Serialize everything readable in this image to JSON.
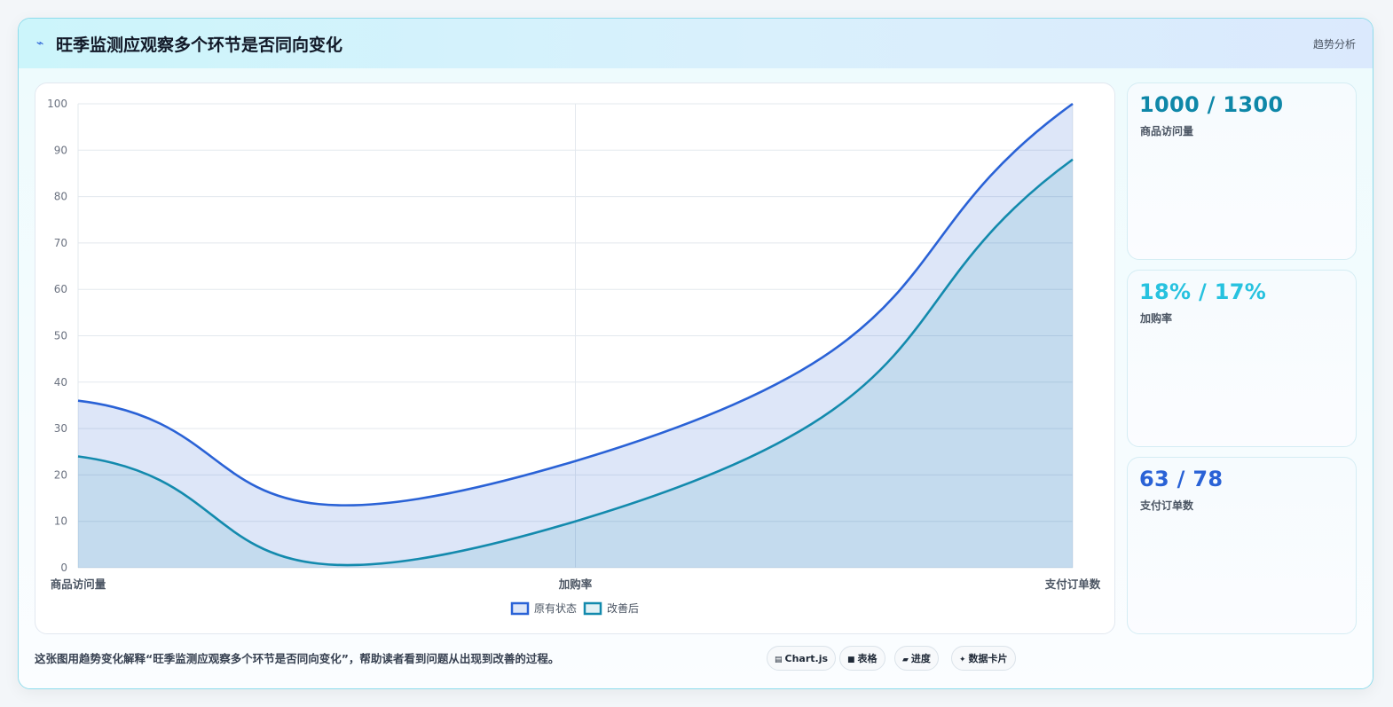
{
  "header": {
    "icon": "lightning-icon",
    "title": "旺季监测应观察多个环节是否同向变化",
    "right_label": "趋势分析"
  },
  "chart_data": {
    "type": "area",
    "categories": [
      "商品访问量",
      "加购率",
      "支付订单数"
    ],
    "series": [
      {
        "name": "原有状态",
        "values": [
          36,
          23,
          100
        ],
        "color": "#2a62d6"
      },
      {
        "name": "改善后",
        "values": [
          24,
          10,
          88
        ],
        "color": "#138aad"
      }
    ],
    "ylim": [
      0,
      100
    ],
    "yticks": [
      0,
      10,
      20,
      30,
      40,
      50,
      60,
      70,
      80,
      90,
      100
    ],
    "grid": true,
    "legend": "bottom"
  },
  "stats": [
    {
      "value": "1000 / 1300",
      "label": "商品访问量",
      "color": "#0e87a8"
    },
    {
      "value": "18% / 17%",
      "label": "加购率",
      "color": "#27c2df"
    },
    {
      "value": "63 / 78",
      "label": "支付订单数",
      "color": "#2a62d6"
    }
  ],
  "footer": {
    "caption": "这张图用趋势变化解释“旺季监测应观察多个环节是否同向变化”，帮助读者看到问题从出现到改善的过程。",
    "chips": [
      {
        "icon": "chart-icon",
        "glyph": "▤",
        "label": "Chart.js"
      },
      {
        "icon": "table-icon",
        "glyph": "■",
        "label": "表格"
      },
      {
        "icon": "progress-icon",
        "glyph": "▰",
        "label": "进度"
      },
      {
        "icon": "sparkle-icon",
        "glyph": "✦",
        "label": "数据卡片"
      }
    ]
  }
}
